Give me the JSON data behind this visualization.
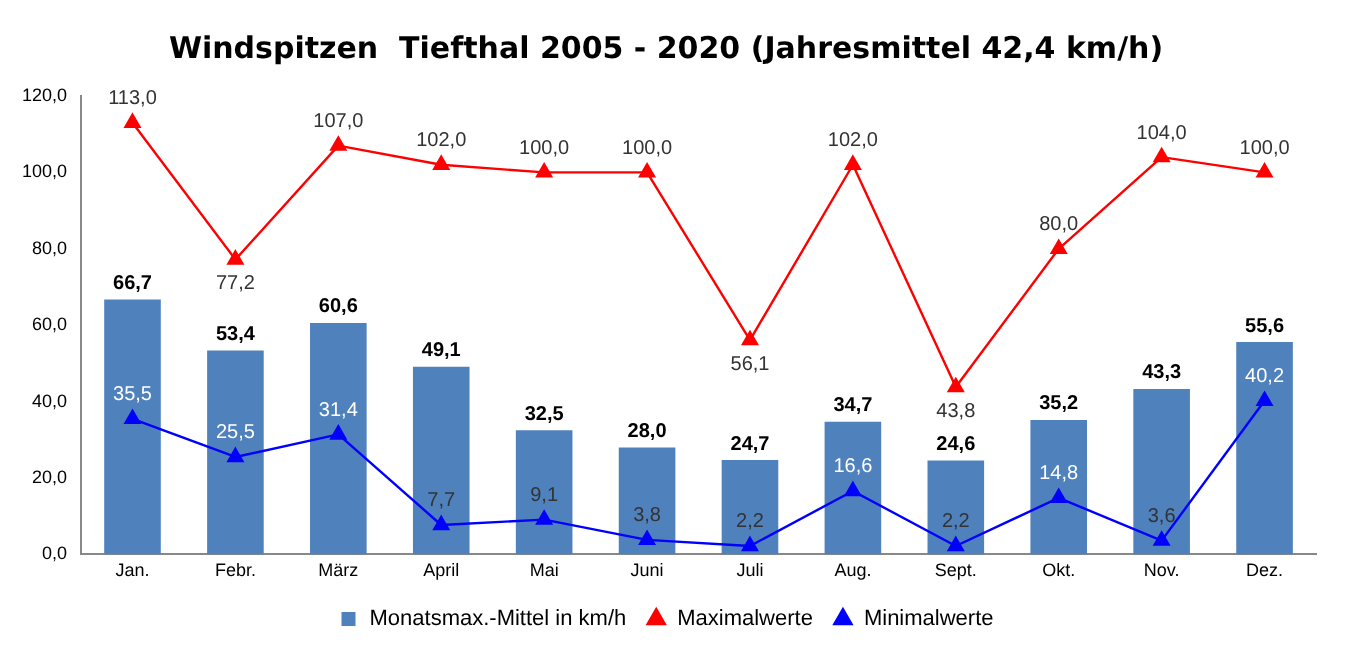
{
  "chart_data": {
    "type": "bar",
    "title": "Windspitzen  Tiefthal 2005 - 2020 (Jahresmittel 42,4 km/h)",
    "categories": [
      "Jan.",
      "Febr.",
      "März",
      "April",
      "Mai",
      "Juni",
      "Juli",
      "Aug.",
      "Sept.",
      "Okt.",
      "Nov.",
      "Dez."
    ],
    "series": [
      {
        "name": "Monatsmax.-Mittel in km/h",
        "color": "#4f81bd",
        "values": [
          66.7,
          53.4,
          60.6,
          49.1,
          32.5,
          28.0,
          24.7,
          34.7,
          24.6,
          35.2,
          43.3,
          55.6
        ],
        "value_labels": [
          "66,7",
          "53,4",
          "60,6",
          "49,1",
          "32,5",
          "28,0",
          "24,7",
          "34,7",
          "24,6",
          "35,2",
          "43,3",
          "55,6"
        ]
      },
      {
        "name": "Maximalwerte",
        "type": "line",
        "color": "#ff0000",
        "values": [
          113.0,
          77.2,
          107.0,
          102.0,
          100.0,
          100.0,
          56.1,
          102.0,
          43.8,
          80.0,
          104.0,
          100.0
        ],
        "value_labels": [
          "113,0",
          "77,2",
          "107,0",
          "102,0",
          "100,0",
          "100,0",
          "56,1",
          "102,0",
          "43,8",
          "80,0",
          "104,0",
          "100,0"
        ]
      },
      {
        "name": "Minimalwerte",
        "type": "line",
        "color": "#0000ff",
        "values": [
          35.5,
          25.5,
          31.4,
          7.7,
          9.1,
          3.8,
          2.2,
          16.6,
          2.2,
          14.8,
          3.6,
          40.2
        ],
        "value_labels": [
          "35,5",
          "25,5",
          "31,4",
          "7,7",
          "9,1",
          "3,8",
          "2,2",
          "16,6",
          "2,2",
          "14,8",
          "3,6",
          "40,2"
        ]
      }
    ],
    "ylim": [
      0,
      120
    ],
    "yticks": [
      {
        "value": 0,
        "label": "0,0"
      },
      {
        "value": 20,
        "label": "20,0"
      },
      {
        "value": 40,
        "label": "40,0"
      },
      {
        "value": 60,
        "label": "60,0"
      },
      {
        "value": 80,
        "label": "80,0"
      },
      {
        "value": 100,
        "label": "100,0"
      },
      {
        "value": 120,
        "label": "120,0"
      }
    ],
    "grid": false,
    "legend": "bottom",
    "marker": "triangle",
    "line_style": "solid"
  }
}
